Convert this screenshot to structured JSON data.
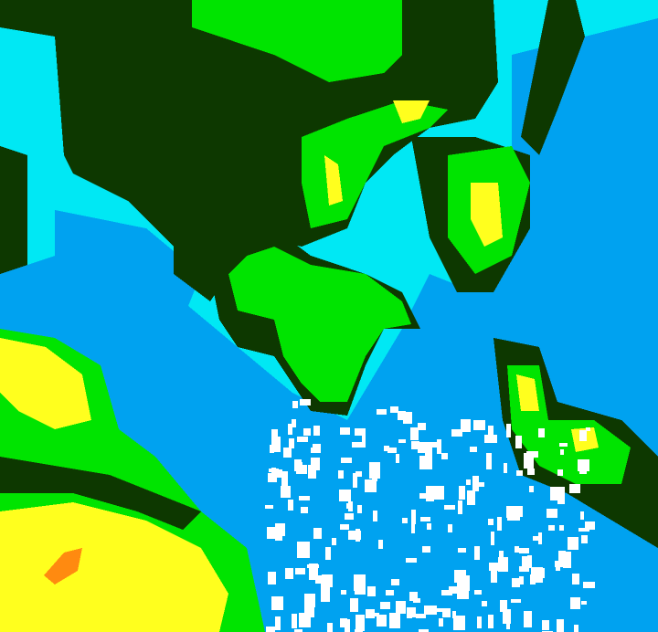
{
  "map": {
    "type": "classified false-color satellite raster",
    "palette": {
      "dark_green": "#0d3800",
      "bright_green": "#00e400",
      "cyan": "#00e8f4",
      "blue": "#00a2f0",
      "yellow": "#ffff1e",
      "orange": "#ff8a10",
      "white": "#ffffff"
    }
  }
}
